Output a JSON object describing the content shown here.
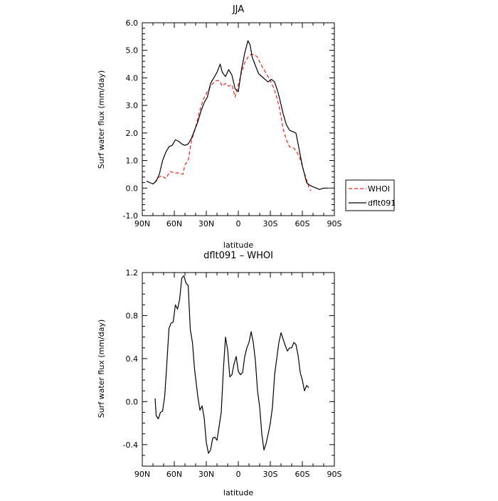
{
  "chart_data": [
    {
      "type": "line",
      "title": "JJA",
      "xlabel": "latitude",
      "ylabel": "Surf water flux (mm/day)",
      "xlim": [
        90,
        -90
      ],
      "ylim": [
        -1.0,
        6.0
      ],
      "x_ticks": [
        {
          "value": 90,
          "label": "90N"
        },
        {
          "value": 60,
          "label": "60N"
        },
        {
          "value": 30,
          "label": "30N"
        },
        {
          "value": 0,
          "label": "0"
        },
        {
          "value": -30,
          "label": "30S"
        },
        {
          "value": -60,
          "label": "60S"
        },
        {
          "value": -90,
          "label": "90S"
        }
      ],
      "y_ticks": [
        {
          "value": -1.0,
          "label": "-1.0"
        },
        {
          "value": 0.0,
          "label": "0.0"
        },
        {
          "value": 1.0,
          "label": "1.0"
        },
        {
          "value": 2.0,
          "label": "2.0"
        },
        {
          "value": 3.0,
          "label": "3.0"
        },
        {
          "value": 4.0,
          "label": "4.0"
        },
        {
          "value": 5.0,
          "label": "5.0"
        },
        {
          "value": 6.0,
          "label": "6.0"
        }
      ],
      "grid": false,
      "legend": "right, outside plot",
      "series": [
        {
          "name": "WHOI",
          "color": "#e8231f",
          "dash": "dashed",
          "points": [
            [
              78,
              0.2
            ],
            [
              76,
              0.35
            ],
            [
              72,
              0.45
            ],
            [
              68,
              0.35
            ],
            [
              64,
              0.6
            ],
            [
              60,
              0.55
            ],
            [
              56,
              0.55
            ],
            [
              52,
              0.5
            ],
            [
              50,
              0.85
            ],
            [
              47,
              1.0
            ],
            [
              44,
              1.7
            ],
            [
              40,
              2.2
            ],
            [
              37,
              2.7
            ],
            [
              33,
              3.2
            ],
            [
              29,
              3.5
            ],
            [
              25,
              3.75
            ],
            [
              21,
              3.9
            ],
            [
              18,
              3.9
            ],
            [
              15,
              3.7
            ],
            [
              12,
              3.8
            ],
            [
              9,
              3.7
            ],
            [
              6,
              3.75
            ],
            [
              3,
              3.3
            ],
            [
              0,
              3.75
            ],
            [
              -3,
              4.2
            ],
            [
              -6,
              4.55
            ],
            [
              -9,
              4.75
            ],
            [
              -12,
              4.85
            ],
            [
              -15,
              4.85
            ],
            [
              -18,
              4.75
            ],
            [
              -21,
              4.5
            ],
            [
              -24,
              4.3
            ],
            [
              -27,
              4.1
            ],
            [
              -30,
              3.9
            ],
            [
              -33,
              3.65
            ],
            [
              -36,
              3.3
            ],
            [
              -38,
              3.0
            ],
            [
              -40,
              2.6
            ],
            [
              -42,
              2.15
            ],
            [
              -45,
              1.75
            ],
            [
              -48,
              1.5
            ],
            [
              -52,
              1.45
            ],
            [
              -55,
              1.3
            ],
            [
              -58,
              1.05
            ],
            [
              -61,
              0.65
            ],
            [
              -64,
              0.3
            ],
            [
              -66,
              0.05
            ],
            [
              -68,
              -0.1
            ]
          ]
        },
        {
          "name": "dflt091",
          "color": "#000000",
          "dash": "solid",
          "points": [
            [
              86,
              0.25
            ],
            [
              80,
              0.15
            ],
            [
              77,
              0.25
            ],
            [
              74,
              0.5
            ],
            [
              71,
              1.0
            ],
            [
              68,
              1.3
            ],
            [
              65,
              1.5
            ],
            [
              62,
              1.55
            ],
            [
              59,
              1.75
            ],
            [
              56,
              1.7
            ],
            [
              53,
              1.6
            ],
            [
              50,
              1.55
            ],
            [
              47,
              1.6
            ],
            [
              44,
              1.8
            ],
            [
              41,
              2.1
            ],
            [
              38,
              2.4
            ],
            [
              35,
              2.8
            ],
            [
              32,
              3.1
            ],
            [
              29,
              3.3
            ],
            [
              26,
              3.8
            ],
            [
              23,
              4.0
            ],
            [
              20,
              4.2
            ],
            [
              17,
              4.5
            ],
            [
              15,
              4.2
            ],
            [
              12,
              4.05
            ],
            [
              9,
              4.3
            ],
            [
              6,
              4.1
            ],
            [
              3,
              3.6
            ],
            [
              0,
              3.5
            ],
            [
              -3,
              4.3
            ],
            [
              -6,
              4.9
            ],
            [
              -9,
              5.35
            ],
            [
              -11,
              5.2
            ],
            [
              -13,
              4.75
            ],
            [
              -16,
              4.45
            ],
            [
              -19,
              4.15
            ],
            [
              -22,
              4.05
            ],
            [
              -25,
              3.95
            ],
            [
              -28,
              3.85
            ],
            [
              -31,
              3.95
            ],
            [
              -34,
              3.85
            ],
            [
              -37,
              3.5
            ],
            [
              -39,
              3.2
            ],
            [
              -42,
              2.7
            ],
            [
              -45,
              2.3
            ],
            [
              -48,
              2.1
            ],
            [
              -51,
              2.05
            ],
            [
              -54,
              2.0
            ],
            [
              -56,
              1.6
            ],
            [
              -58,
              1.2
            ],
            [
              -60,
              0.8
            ],
            [
              -62,
              0.5
            ],
            [
              -64,
              0.2
            ],
            [
              -67,
              0.1
            ],
            [
              -70,
              0.05
            ],
            [
              -73,
              0.0
            ],
            [
              -76,
              -0.05
            ],
            [
              -80,
              0.0
            ],
            [
              -85,
              0.0
            ]
          ]
        }
      ]
    },
    {
      "type": "line",
      "title": "dflt091 – WHOI",
      "xlabel": "latitude",
      "ylabel": "Surf water flux (mm/day)",
      "xlim": [
        90,
        -90
      ],
      "ylim": [
        -0.6,
        1.2
      ],
      "x_ticks": [
        {
          "value": 90,
          "label": "90N"
        },
        {
          "value": 60,
          "label": "60N"
        },
        {
          "value": 30,
          "label": "30N"
        },
        {
          "value": 0,
          "label": "0"
        },
        {
          "value": -30,
          "label": "30S"
        },
        {
          "value": -60,
          "label": "60S"
        },
        {
          "value": -90,
          "label": "90S"
        }
      ],
      "y_ticks": [
        {
          "value": -0.4,
          "label": "-0.4"
        },
        {
          "value": 0.0,
          "label": "0.0"
        },
        {
          "value": 0.4,
          "label": "0.4"
        },
        {
          "value": 0.8,
          "label": "0.8"
        },
        {
          "value": 1.2,
          "label": "1.2"
        }
      ],
      "grid": false,
      "series": [
        {
          "color": "#000000",
          "dash": "solid",
          "points": [
            [
              78,
              0.03
            ],
            [
              77,
              -0.13
            ],
            [
              75,
              -0.16
            ],
            [
              73,
              -0.1
            ],
            [
              71,
              -0.09
            ],
            [
              69,
              0.05
            ],
            [
              67,
              0.35
            ],
            [
              65,
              0.68
            ],
            [
              63,
              0.73
            ],
            [
              61,
              0.74
            ],
            [
              59,
              0.9
            ],
            [
              57,
              0.86
            ],
            [
              55,
              0.95
            ],
            [
              53,
              1.15
            ],
            [
              51,
              1.17
            ],
            [
              49,
              1.1
            ],
            [
              47,
              1.08
            ],
            [
              45,
              0.67
            ],
            [
              43,
              0.55
            ],
            [
              41,
              0.3
            ],
            [
              38,
              0.05
            ],
            [
              36,
              -0.08
            ],
            [
              34,
              -0.04
            ],
            [
              32,
              -0.15
            ],
            [
              30,
              -0.38
            ],
            [
              28,
              -0.48
            ],
            [
              26,
              -0.45
            ],
            [
              24,
              -0.34
            ],
            [
              22,
              -0.33
            ],
            [
              20,
              -0.36
            ],
            [
              18,
              -0.23
            ],
            [
              16,
              -0.1
            ],
            [
              14,
              0.3
            ],
            [
              12,
              0.6
            ],
            [
              10,
              0.48
            ],
            [
              8,
              0.23
            ],
            [
              6,
              0.25
            ],
            [
              4,
              0.35
            ],
            [
              2,
              0.42
            ],
            [
              0,
              0.28
            ],
            [
              -2,
              0.25
            ],
            [
              -4,
              0.27
            ],
            [
              -6,
              0.42
            ],
            [
              -8,
              0.5
            ],
            [
              -10,
              0.55
            ],
            [
              -12,
              0.65
            ],
            [
              -14,
              0.55
            ],
            [
              -16,
              0.38
            ],
            [
              -18,
              0.1
            ],
            [
              -20,
              -0.05
            ],
            [
              -22,
              -0.3
            ],
            [
              -24,
              -0.45
            ],
            [
              -26,
              -0.39
            ],
            [
              -28,
              -0.3
            ],
            [
              -30,
              -0.2
            ],
            [
              -32,
              -0.05
            ],
            [
              -34,
              0.25
            ],
            [
              -36,
              0.4
            ],
            [
              -38,
              0.55
            ],
            [
              -40,
              0.64
            ],
            [
              -42,
              0.58
            ],
            [
              -44,
              0.52
            ],
            [
              -46,
              0.47
            ],
            [
              -48,
              0.5
            ],
            [
              -50,
              0.5
            ],
            [
              -52,
              0.55
            ],
            [
              -54,
              0.53
            ],
            [
              -56,
              0.43
            ],
            [
              -58,
              0.27
            ],
            [
              -60,
              0.2
            ],
            [
              -62,
              0.1
            ],
            [
              -64,
              0.15
            ],
            [
              -66,
              0.13
            ]
          ]
        }
      ]
    }
  ]
}
